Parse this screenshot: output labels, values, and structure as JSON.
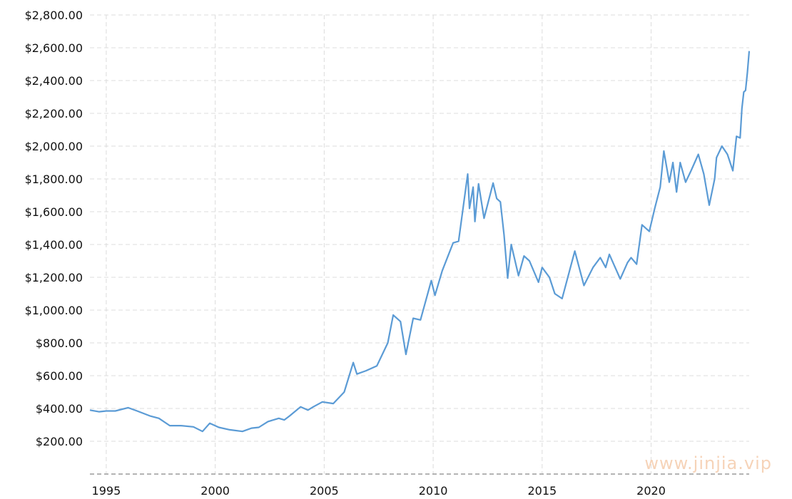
{
  "watermark": "www.jinjia.vip",
  "colors": {
    "line": "#5b9bd5",
    "grid": "#dcdcdc",
    "axis": "#9a9a9a",
    "watermark": "#f6d3b8"
  },
  "chart_data": {
    "type": "line",
    "title": "",
    "xlabel": "",
    "ylabel": "",
    "grid": true,
    "legend": "none",
    "xlim": [
      "1994-04",
      "2024-07"
    ],
    "ylim": [
      0,
      2800
    ],
    "y_ticks": [
      {
        "value": 200,
        "label": "$200.00"
      },
      {
        "value": 400,
        "label": "$400.00"
      },
      {
        "value": 600,
        "label": "$600.00"
      },
      {
        "value": 800,
        "label": "$800.00"
      },
      {
        "value": 1000,
        "label": "$1,000.00"
      },
      {
        "value": 1200,
        "label": "$1,200.00"
      },
      {
        "value": 1400,
        "label": "$1,400.00"
      },
      {
        "value": 1600,
        "label": "$1,600.00"
      },
      {
        "value": 1800,
        "label": "$1,800.00"
      },
      {
        "value": 2000,
        "label": "$2,000.00"
      },
      {
        "value": 2200,
        "label": "$2,200.00"
      },
      {
        "value": 2400,
        "label": "$2,400.00"
      },
      {
        "value": 2600,
        "label": "$2,600.00"
      },
      {
        "value": 2800,
        "label": "$2,800.00"
      }
    ],
    "x_ticks": [
      {
        "value": "1995",
        "label": "1995"
      },
      {
        "value": "2000",
        "label": "2000"
      },
      {
        "value": "2005",
        "label": "2005"
      },
      {
        "value": "2010",
        "label": "2010"
      },
      {
        "value": "2015",
        "label": "2015"
      },
      {
        "value": "2020",
        "label": "2020"
      }
    ],
    "series": [
      {
        "points": [
          [
            "1994-04",
            390
          ],
          [
            "1994-09",
            380
          ],
          [
            "1995-01",
            385
          ],
          [
            "1995-06",
            385
          ],
          [
            "1996-01",
            405
          ],
          [
            "1996-06",
            385
          ],
          [
            "1997-01",
            355
          ],
          [
            "1997-06",
            340
          ],
          [
            "1997-12",
            295
          ],
          [
            "1998-06",
            295
          ],
          [
            "1999-01",
            288
          ],
          [
            "1999-06",
            260
          ],
          [
            "1999-10",
            310
          ],
          [
            "2000-03",
            285
          ],
          [
            "2000-09",
            270
          ],
          [
            "2001-04",
            260
          ],
          [
            "2001-09",
            280
          ],
          [
            "2002-01",
            285
          ],
          [
            "2002-06",
            320
          ],
          [
            "2002-12",
            340
          ],
          [
            "2003-03",
            330
          ],
          [
            "2003-06",
            355
          ],
          [
            "2003-12",
            410
          ],
          [
            "2004-04",
            390
          ],
          [
            "2004-07",
            410
          ],
          [
            "2004-12",
            440
          ],
          [
            "2005-06",
            430
          ],
          [
            "2005-12",
            500
          ],
          [
            "2006-05",
            680
          ],
          [
            "2006-07",
            610
          ],
          [
            "2006-12",
            630
          ],
          [
            "2007-06",
            660
          ],
          [
            "2007-12",
            800
          ],
          [
            "2008-03",
            970
          ],
          [
            "2008-07",
            930
          ],
          [
            "2008-10",
            730
          ],
          [
            "2009-02",
            950
          ],
          [
            "2009-06",
            940
          ],
          [
            "2009-12",
            1180
          ],
          [
            "2010-02",
            1090
          ],
          [
            "2010-06",
            1240
          ],
          [
            "2010-12",
            1410
          ],
          [
            "2011-03",
            1420
          ],
          [
            "2011-08",
            1830
          ],
          [
            "2011-09",
            1620
          ],
          [
            "2011-11",
            1750
          ],
          [
            "2011-12",
            1540
          ],
          [
            "2012-02",
            1770
          ],
          [
            "2012-05",
            1560
          ],
          [
            "2012-10",
            1775
          ],
          [
            "2012-12",
            1680
          ],
          [
            "2013-02",
            1660
          ],
          [
            "2013-04",
            1460
          ],
          [
            "2013-06",
            1195
          ],
          [
            "2013-08",
            1400
          ],
          [
            "2013-12",
            1210
          ],
          [
            "2014-03",
            1330
          ],
          [
            "2014-06",
            1300
          ],
          [
            "2014-11",
            1170
          ],
          [
            "2015-01",
            1260
          ],
          [
            "2015-05",
            1200
          ],
          [
            "2015-08",
            1100
          ],
          [
            "2015-12",
            1070
          ],
          [
            "2016-07",
            1360
          ],
          [
            "2016-12",
            1150
          ],
          [
            "2017-05",
            1260
          ],
          [
            "2017-09",
            1320
          ],
          [
            "2017-12",
            1260
          ],
          [
            "2018-02",
            1340
          ],
          [
            "2018-08",
            1190
          ],
          [
            "2018-12",
            1290
          ],
          [
            "2019-02",
            1320
          ],
          [
            "2019-05",
            1280
          ],
          [
            "2019-08",
            1520
          ],
          [
            "2019-12",
            1480
          ],
          [
            "2020-03",
            1620
          ],
          [
            "2020-06",
            1750
          ],
          [
            "2020-08",
            1970
          ],
          [
            "2020-11",
            1780
          ],
          [
            "2021-01",
            1900
          ],
          [
            "2021-03",
            1720
          ],
          [
            "2021-05",
            1900
          ],
          [
            "2021-08",
            1780
          ],
          [
            "2021-11",
            1850
          ],
          [
            "2022-03",
            1950
          ],
          [
            "2022-06",
            1830
          ],
          [
            "2022-09",
            1640
          ],
          [
            "2022-12",
            1800
          ],
          [
            "2023-01",
            1930
          ],
          [
            "2023-04",
            2000
          ],
          [
            "2023-07",
            1950
          ],
          [
            "2023-10",
            1850
          ],
          [
            "2023-12",
            2060
          ],
          [
            "2024-02",
            2050
          ],
          [
            "2024-03",
            2230
          ],
          [
            "2024-04",
            2330
          ],
          [
            "2024-05",
            2340
          ],
          [
            "2024-06",
            2450
          ],
          [
            "2024-07",
            2580
          ]
        ]
      }
    ]
  }
}
